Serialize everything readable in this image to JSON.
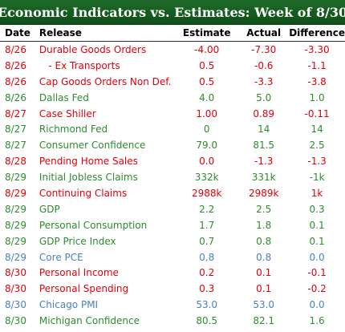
{
  "title": "Economic Indicators vs. Estimates: Week of 8/30",
  "headers": {
    "date": "Date",
    "release": "Release",
    "estimate": "Estimate",
    "actual": "Actual",
    "difference": "Difference"
  },
  "colors": {
    "title_bg": "#0f4f18",
    "miss": "#e0000b",
    "beat": "#2e8b2e",
    "inline": "#4a7fc0"
  },
  "rows": [
    {
      "date": "8/26",
      "release": "Durable Goods Orders",
      "estimate": "-4.00",
      "actual": "-7.30",
      "difference": "-3.30",
      "status": "red"
    },
    {
      "date": "8/26",
      "release": "   - Ex Transports",
      "estimate": "0.5",
      "actual": "-0.6",
      "difference": "-1.1",
      "status": "red"
    },
    {
      "date": "8/26",
      "release": "Cap Goods Orders Non Def.",
      "estimate": "0.5",
      "actual": "-3.3",
      "difference": "-3.8",
      "status": "red"
    },
    {
      "date": "8/26",
      "release": "Dallas Fed",
      "estimate": "4.0",
      "actual": "5.0",
      "difference": "1.0",
      "status": "green"
    },
    {
      "date": "8/27",
      "release": "Case Shiller",
      "estimate": "1.00",
      "actual": "0.89",
      "difference": "-0.11",
      "status": "red"
    },
    {
      "date": "8/27",
      "release": "Richmond Fed",
      "estimate": "0",
      "actual": "14",
      "difference": "14",
      "status": "green"
    },
    {
      "date": "8/27",
      "release": "Consumer Confidence",
      "estimate": "79.0",
      "actual": "81.5",
      "difference": "2.5",
      "status": "green"
    },
    {
      "date": "8/28",
      "release": "Pending Home Sales",
      "estimate": "0.0",
      "actual": "-1.3",
      "difference": "-1.3",
      "status": "red"
    },
    {
      "date": "8/29",
      "release": "Initial Jobless Claims",
      "estimate": "332k",
      "actual": "331k",
      "difference": "-1k",
      "status": "green"
    },
    {
      "date": "8/29",
      "release": "Continuing Claims",
      "estimate": "2988k",
      "actual": "2989k",
      "difference": "1k",
      "status": "red"
    },
    {
      "date": "8/29",
      "release": "GDP",
      "estimate": "2.2",
      "actual": "2.5",
      "difference": "0.3",
      "status": "green"
    },
    {
      "date": "8/29",
      "release": "Personal Consumption",
      "estimate": "1.7",
      "actual": "1.8",
      "difference": "0.1",
      "status": "green"
    },
    {
      "date": "8/29",
      "release": "GDP Price Index",
      "estimate": "0.7",
      "actual": "0.8",
      "difference": "0.1",
      "status": "green"
    },
    {
      "date": "8/29",
      "release": "Core PCE",
      "estimate": "0.8",
      "actual": "0.8",
      "difference": "0.0",
      "status": "blue"
    },
    {
      "date": "8/30",
      "release": "Personal Income",
      "estimate": "0.2",
      "actual": "0.1",
      "difference": "-0.1",
      "status": "red"
    },
    {
      "date": "8/30",
      "release": "Personal Spending",
      "estimate": "0.3",
      "actual": "0.1",
      "difference": "-0.2",
      "status": "red"
    },
    {
      "date": "8/30",
      "release": "Chicago PMI",
      "estimate": "53.0",
      "actual": "53.0",
      "difference": "0.0",
      "status": "blue"
    },
    {
      "date": "8/30",
      "release": "Michigan Confidence",
      "estimate": "80.5",
      "actual": "82.1",
      "difference": "1.6",
      "status": "green"
    }
  ]
}
